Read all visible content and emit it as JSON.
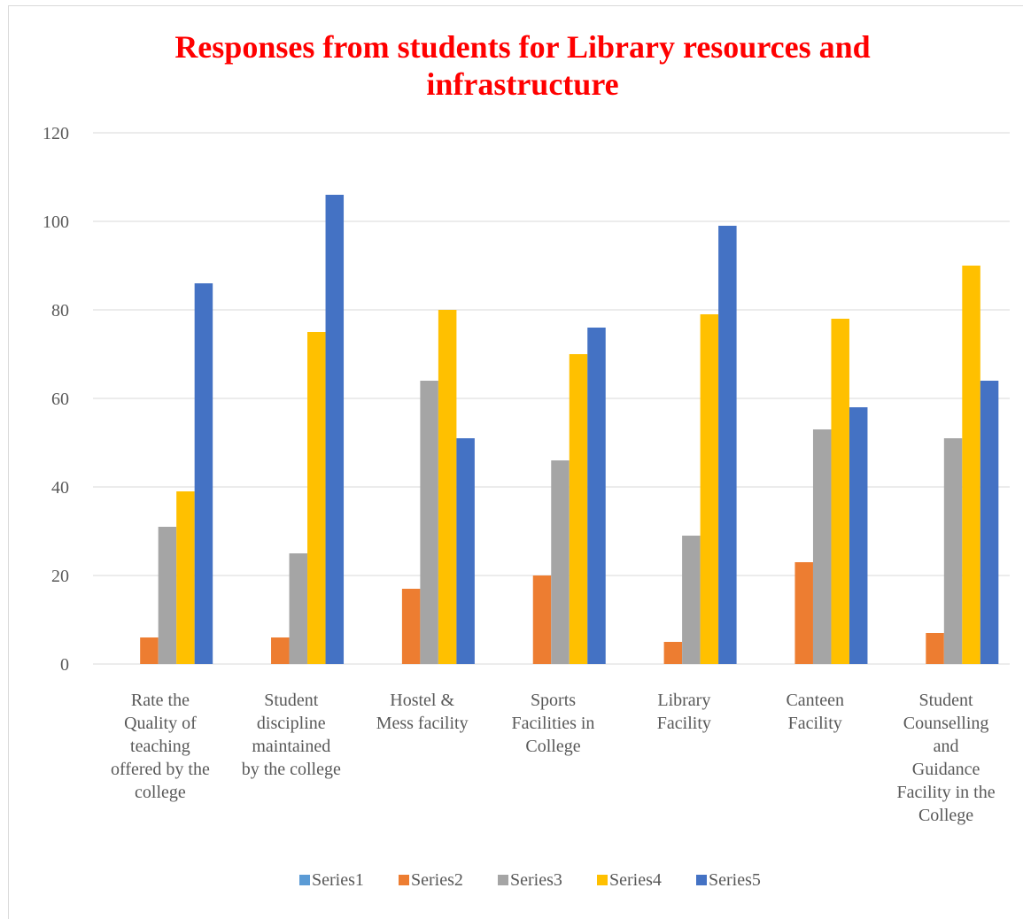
{
  "chart_data": {
    "type": "bar",
    "title": "Responses from students for Library resources and infrastructure",
    "xlabel": "",
    "ylabel": "",
    "ylim": [
      0,
      120
    ],
    "yticks": [
      0,
      20,
      40,
      60,
      80,
      100,
      120
    ],
    "grid": true,
    "legend_position": "bottom",
    "categories": [
      [
        "Rate the",
        "Quality of",
        "teaching",
        "offered by the",
        "college"
      ],
      [
        "Student",
        "discipline",
        "maintained",
        "by the college"
      ],
      [
        "Hostel &",
        "Mess facility"
      ],
      [
        "Sports",
        "Facilities in",
        "College"
      ],
      [
        "Library",
        "Facility"
      ],
      [
        "Canteen",
        "Facility"
      ],
      [
        "Student",
        "Counselling",
        "and",
        "Guidance",
        "Facility in the",
        "College"
      ]
    ],
    "series": [
      {
        "name": "Series1",
        "color": "#5b9bd5",
        "values": [
          0,
          0,
          0,
          0,
          0,
          0,
          0
        ]
      },
      {
        "name": "Series2",
        "color": "#ed7d31",
        "values": [
          6,
          6,
          17,
          20,
          5,
          23,
          7
        ]
      },
      {
        "name": "Series3",
        "color": "#a5a5a5",
        "values": [
          31,
          25,
          64,
          46,
          29,
          53,
          51
        ]
      },
      {
        "name": "Series4",
        "color": "#ffc000",
        "values": [
          39,
          75,
          80,
          70,
          79,
          78,
          90
        ]
      },
      {
        "name": "Series5",
        "color": "#4472c4",
        "values": [
          86,
          106,
          51,
          76,
          99,
          58,
          64
        ]
      }
    ]
  }
}
